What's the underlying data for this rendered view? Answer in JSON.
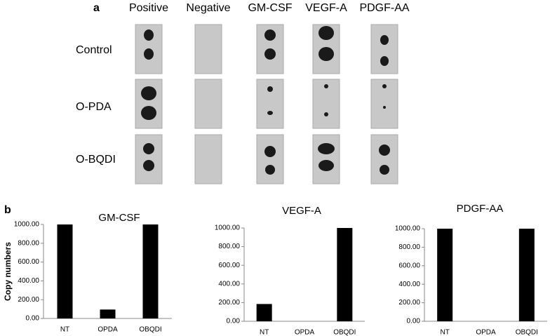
{
  "panel_a": {
    "label": "a",
    "columns": [
      "Positive",
      "Negative",
      "GM-CSF",
      "VEGF-A",
      "PDGF-AA"
    ],
    "rows": [
      "Control",
      "O-PDA",
      "O-BQDI"
    ]
  },
  "panel_b": {
    "label": "b"
  },
  "chart_data": [
    {
      "type": "bar",
      "title": "GM-CSF",
      "y_label": "Copy numbers",
      "categories": [
        "NT",
        "OPDA",
        "OBQDI"
      ],
      "values": [
        1000,
        95,
        1000
      ],
      "color": "#000000",
      "ylim": [
        0,
        1000
      ],
      "yticks": [
        {
          "value": 0,
          "label": "0.00"
        },
        {
          "value": 200,
          "label": "200.00"
        },
        {
          "value": 400,
          "label": "400.00"
        },
        {
          "value": 600,
          "label": "600.00"
        },
        {
          "value": 800,
          "label": "800.00"
        },
        {
          "value": 1000,
          "label": "1000.00"
        }
      ]
    },
    {
      "type": "bar",
      "title": "VEGF-A",
      "categories": [
        "NT",
        "OPDA",
        "OBQDI"
      ],
      "values": [
        185,
        0,
        1000
      ],
      "color": "#000000",
      "ylim": [
        0,
        1000
      ],
      "yticks": [
        {
          "value": 0,
          "label": "0.00"
        },
        {
          "value": 200,
          "label": "200.00"
        },
        {
          "value": 400,
          "label": "400.00"
        },
        {
          "value": 600,
          "label": "600.00"
        },
        {
          "value": 800,
          "label": "800.00"
        },
        {
          "value": 1000,
          "label": "1000.00"
        }
      ]
    },
    {
      "type": "bar",
      "title": "PDGF-AA",
      "categories": [
        "NT",
        "OPDA",
        "OBQDI"
      ],
      "values": [
        1000,
        0,
        1000
      ],
      "color": "#000000",
      "ylim": [
        0,
        1000
      ],
      "yticks": [
        {
          "value": 0,
          "label": "0.00"
        },
        {
          "value": 200,
          "label": "200.00"
        },
        {
          "value": 400,
          "label": "400.00"
        },
        {
          "value": 600,
          "label": "600.00"
        },
        {
          "value": 800,
          "label": "800.00"
        },
        {
          "value": 1000,
          "label": "1000.00"
        }
      ]
    }
  ]
}
